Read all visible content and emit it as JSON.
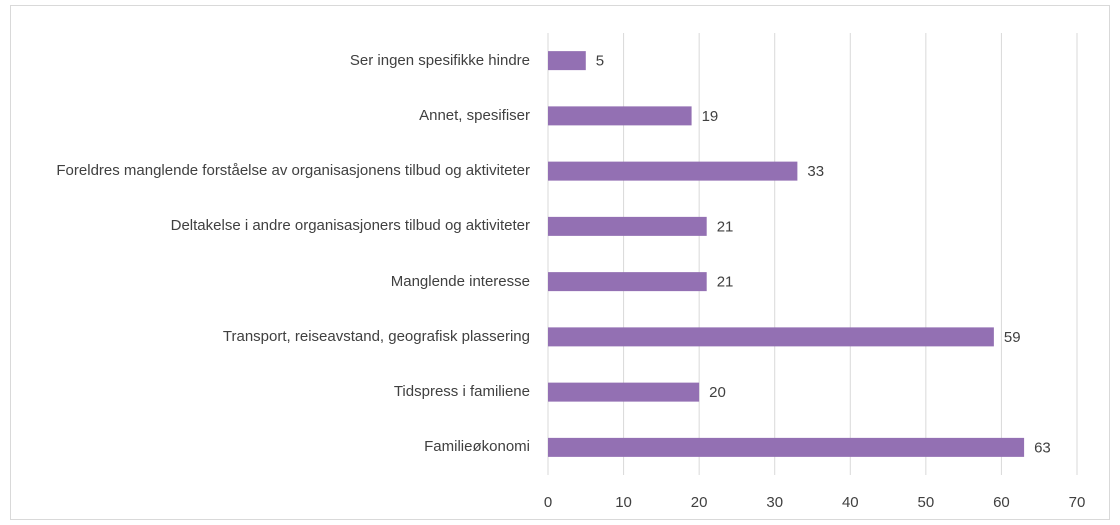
{
  "chart_data": {
    "type": "bar",
    "orientation": "horizontal",
    "categories": [
      "Ser ingen spesifikke hindre",
      "Annet, spesifiser",
      "Foreldres manglende forståelse av organisasjonens tilbud og aktiviteter",
      "Deltakelse i andre organisasjoners tilbud og aktiviteter",
      "Manglende interesse",
      "Transport, reiseavstand, geografisk plassering",
      "Tidspress i familiene",
      "Familieøkonomi"
    ],
    "values": [
      5,
      19,
      33,
      21,
      21,
      59,
      20,
      63
    ],
    "color": "#9370b3",
    "xlim": [
      0,
      70
    ],
    "xticks": [
      0,
      10,
      20,
      30,
      40,
      50,
      60,
      70
    ],
    "grid": true
  }
}
